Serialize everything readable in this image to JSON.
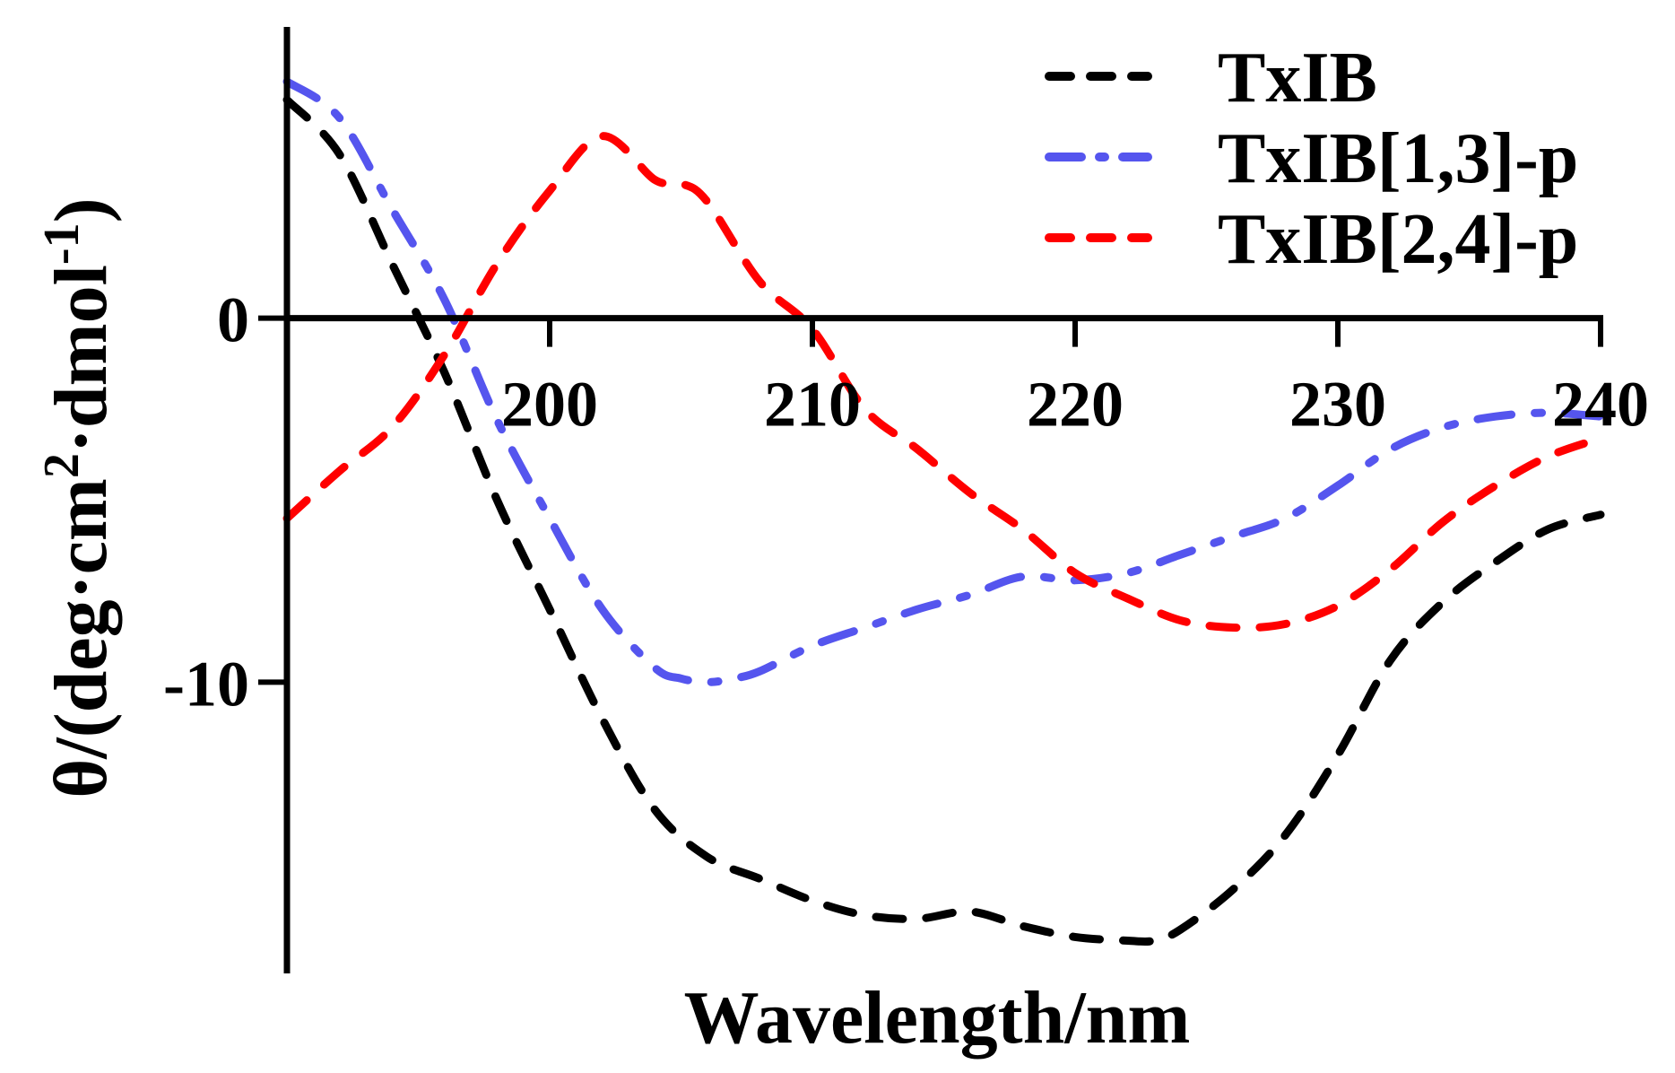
{
  "chart_data": {
    "type": "line",
    "title": "",
    "xlabel": "Wavelength/nm",
    "ylabel_parts": {
      "base": "θ/(deg·cm",
      "sup1": "2",
      "mid": "·dmol",
      "sup2": "-1",
      "end": ")"
    },
    "xlim": [
      190,
      240
    ],
    "ylim": [
      -18,
      8
    ],
    "x_ticks": [
      200,
      210,
      220,
      230,
      240
    ],
    "x_tick_labels": [
      "200",
      "210",
      "220",
      "230",
      "240"
    ],
    "y_ticks": [
      0,
      -10
    ],
    "y_tick_labels": [
      "0",
      "-10"
    ],
    "grid": false,
    "legend_position": "top-right",
    "series": [
      {
        "name": "TxIB",
        "color": "#000000",
        "style": "dashed",
        "x": [
          190,
          192,
          194,
          196,
          198,
          200,
          202,
          204,
          206,
          208,
          210,
          212,
          214,
          216,
          218,
          220,
          222,
          223,
          224,
          226,
          228,
          230,
          232,
          234,
          236,
          238,
          240
        ],
        "y": [
          6,
          4.5,
          1.5,
          -1.5,
          -5,
          -8,
          -11,
          -13.5,
          -14.8,
          -15.4,
          -16,
          -16.4,
          -16.5,
          -16.3,
          -16.7,
          -17.0,
          -17.1,
          -17.1,
          -16.8,
          -15.7,
          -14.2,
          -12.0,
          -9.4,
          -7.8,
          -6.7,
          -5.8,
          -5.4
        ]
      },
      {
        "name": "TxIB[1,3]-p",
        "color": "#5555ee",
        "style": "dashdot",
        "x": [
          190,
          192,
          194,
          196,
          198,
          200,
          202,
          204,
          205,
          206,
          207,
          208,
          210,
          212,
          214,
          216,
          218,
          220,
          222,
          224,
          226,
          228,
          230,
          232,
          234,
          236,
          238,
          240
        ],
        "y": [
          6.5,
          5.5,
          3.0,
          0.5,
          -2.8,
          -5.5,
          -8.0,
          -9.6,
          -9.9,
          -10.0,
          -9.9,
          -9.7,
          -9.0,
          -8.5,
          -8.0,
          -7.6,
          -7.1,
          -7.2,
          -7.0,
          -6.5,
          -6.0,
          -5.5,
          -4.6,
          -3.6,
          -3.0,
          -2.7,
          -2.6,
          -2.7
        ]
      },
      {
        "name": "TxIB[2,4]-p",
        "color": "#ff0000",
        "style": "dashed",
        "x": [
          190,
          192,
          194,
          196,
          198,
          200,
          202,
          204,
          205,
          206,
          208,
          210,
          212,
          214,
          216,
          218,
          220,
          222,
          224,
          226,
          228,
          230,
          232,
          234,
          236,
          238,
          240
        ],
        "y": [
          -5.5,
          -4.2,
          -3.0,
          -1.0,
          1.5,
          3.5,
          5.0,
          3.8,
          3.7,
          3.2,
          1.0,
          -0.3,
          -2.5,
          -3.6,
          -4.8,
          -5.8,
          -7.0,
          -7.7,
          -8.3,
          -8.5,
          -8.4,
          -7.9,
          -6.9,
          -5.6,
          -4.6,
          -3.8,
          -3.3
        ]
      }
    ]
  }
}
